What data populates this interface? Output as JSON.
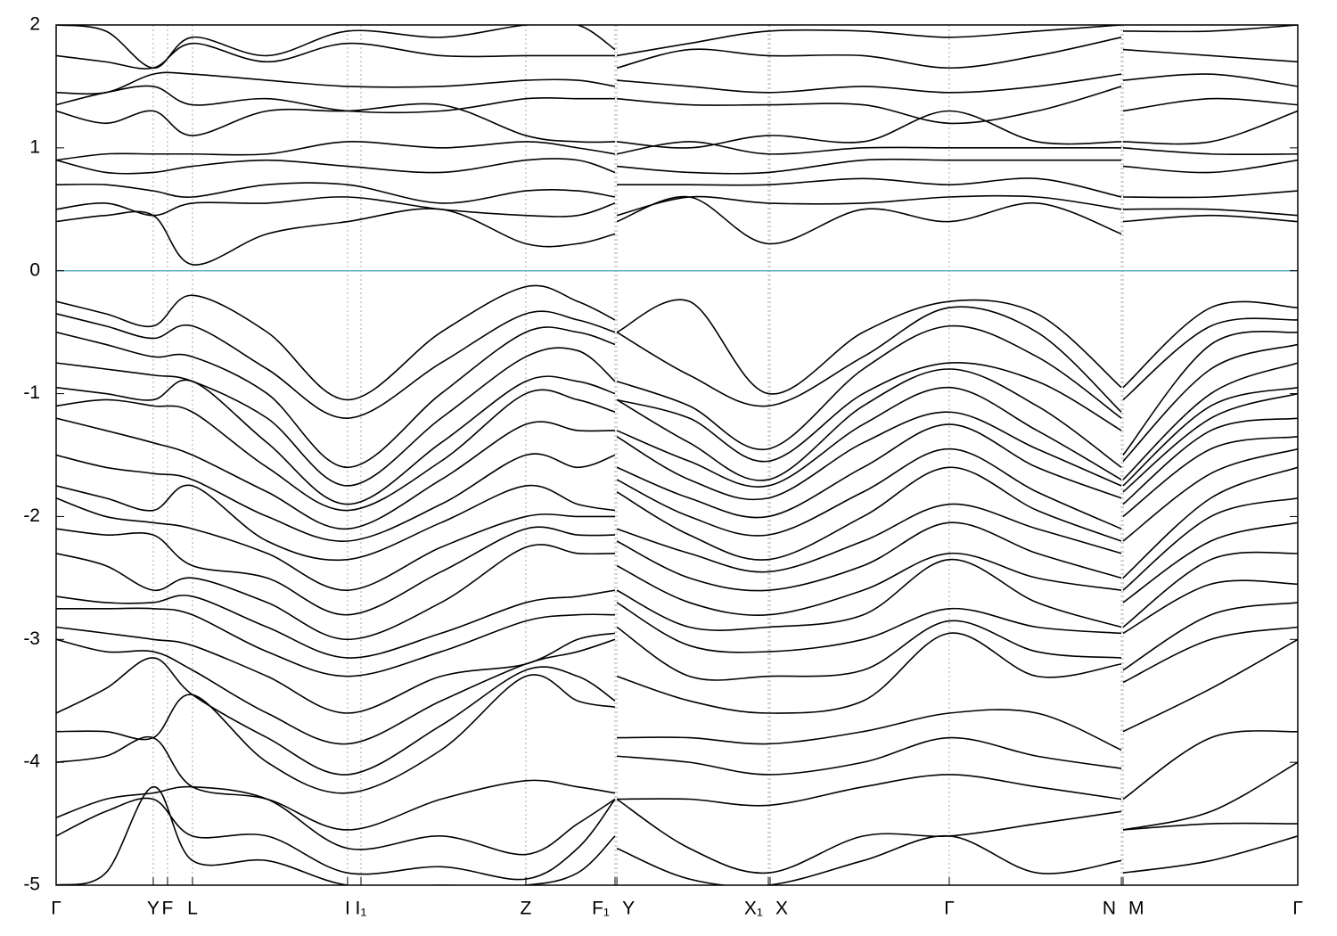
{
  "chart_data": {
    "type": "band-structure",
    "xlim": [
      0,
      1
    ],
    "xticks": [
      {
        "value": 0,
        "label": "Γ"
      },
      {
        "value": 0.0782,
        "label": "Y"
      },
      {
        "value": 0.0897,
        "label": "F"
      },
      {
        "value": 0.1098,
        "label": "L"
      },
      {
        "value": 0.2347,
        "label": "I"
      },
      {
        "value": 0.2455,
        "label": "I₁"
      },
      {
        "value": 0.3783,
        "label": "Z"
      },
      {
        "value": 0.4501,
        "label": "F₁"
      },
      {
        "value": 0.4516,
        "label": "Y"
      },
      {
        "value": 0.5736,
        "label": "X₁"
      },
      {
        "value": 0.575,
        "label": "X"
      },
      {
        "value": 0.7193,
        "label": "Γ"
      },
      {
        "value": 0.8579,
        "label": "N"
      },
      {
        "value": 0.8593,
        "label": "M"
      },
      {
        "value": 1,
        "label": "Γ"
      }
    ],
    "ylim": [
      -5,
      2
    ],
    "yticks": [
      2,
      1,
      0,
      -1,
      -2,
      -3,
      -4,
      -5
    ],
    "grid": true,
    "line_color": "#000000",
    "fermi_level": 0,
    "fermi_color": "#5fb1c6",
    "x": [
      0,
      0.04,
      0.0782,
      0.1098,
      0.17,
      0.2347,
      0.31,
      0.3783,
      0.42,
      0.4501,
      0.451,
      0.4516,
      0.51,
      0.5736,
      0.65,
      0.7193,
      0.79,
      0.8579,
      0.8586,
      0.8593,
      0.93,
      1.0
    ],
    "bands": [
      [
        0.4,
        0.45,
        0.45,
        0.05,
        0.3,
        0.4,
        0.5,
        0.22,
        0.22,
        0.3,
        null,
        0.4,
        0.6,
        0.22,
        0.5,
        0.4,
        0.55,
        0.3,
        null,
        0.4,
        0.45,
        0.4
      ],
      [
        0.5,
        0.55,
        0.45,
        0.55,
        0.55,
        0.6,
        0.5,
        0.45,
        0.45,
        0.55,
        null,
        0.45,
        0.6,
        0.55,
        0.55,
        0.6,
        0.6,
        0.5,
        null,
        0.5,
        0.5,
        0.45
      ],
      [
        0.7,
        0.7,
        0.65,
        0.6,
        0.7,
        0.7,
        0.55,
        0.65,
        0.65,
        0.6,
        null,
        0.7,
        0.7,
        0.7,
        0.75,
        0.7,
        0.75,
        0.6,
        null,
        0.6,
        0.6,
        0.65
      ],
      [
        0.9,
        0.8,
        0.8,
        0.85,
        0.9,
        0.85,
        0.8,
        0.9,
        0.9,
        0.8,
        null,
        0.85,
        0.8,
        0.8,
        0.9,
        0.9,
        0.9,
        0.9,
        null,
        0.85,
        0.8,
        0.9
      ],
      [
        0.9,
        0.95,
        0.95,
        0.95,
        0.95,
        1.05,
        1.0,
        1.05,
        1.0,
        0.95,
        null,
        0.95,
        1.05,
        0.95,
        1.0,
        1.0,
        1.0,
        1.0,
        null,
        1.0,
        0.95,
        0.95
      ],
      [
        1.3,
        1.2,
        1.3,
        1.1,
        1.3,
        1.3,
        1.35,
        1.1,
        1.05,
        1.05,
        null,
        1.05,
        1.0,
        1.1,
        1.05,
        1.3,
        1.05,
        1.05,
        null,
        1.05,
        1.05,
        1.3
      ],
      [
        1.35,
        1.45,
        1.5,
        1.35,
        1.4,
        1.3,
        1.3,
        1.4,
        1.4,
        1.4,
        null,
        1.4,
        1.35,
        1.35,
        1.35,
        1.2,
        1.3,
        1.5,
        null,
        1.3,
        1.4,
        1.35
      ],
      [
        1.45,
        1.45,
        1.6,
        1.6,
        1.55,
        1.5,
        1.5,
        1.55,
        1.55,
        1.5,
        null,
        1.55,
        1.5,
        1.45,
        1.5,
        1.45,
        1.5,
        1.6,
        null,
        1.55,
        1.6,
        1.5
      ],
      [
        1.75,
        1.7,
        1.65,
        1.85,
        1.7,
        1.85,
        1.75,
        1.75,
        1.75,
        1.75,
        null,
        1.65,
        1.8,
        1.75,
        1.75,
        1.65,
        1.75,
        1.9,
        null,
        1.8,
        1.75,
        1.7
      ],
      [
        2.0,
        1.95,
        1.65,
        1.9,
        1.75,
        1.95,
        1.9,
        2.0,
        2.0,
        1.8,
        null,
        1.75,
        1.85,
        1.95,
        1.95,
        1.9,
        1.95,
        2.0,
        null,
        1.95,
        1.95,
        2.0
      ],
      [
        -0.25,
        -0.35,
        -0.45,
        -0.2,
        -0.5,
        -1.05,
        -0.5,
        -0.13,
        -0.25,
        -0.4,
        null,
        -0.5,
        -0.25,
        -1.0,
        -0.5,
        -0.25,
        -0.35,
        -0.95,
        null,
        -0.95,
        -0.3,
        -0.3
      ],
      [
        -0.35,
        -0.45,
        -0.55,
        -0.45,
        -0.8,
        -1.2,
        -0.75,
        -0.35,
        -0.4,
        -0.5,
        null,
        -0.5,
        -0.85,
        -1.1,
        -0.7,
        -0.3,
        -0.5,
        -1.15,
        null,
        -1.05,
        -0.45,
        -0.4
      ],
      [
        -0.5,
        -0.6,
        -0.7,
        -0.7,
        -1.0,
        -1.6,
        -1.0,
        -0.5,
        -0.5,
        -0.6,
        null,
        -0.9,
        -1.1,
        -1.45,
        -0.8,
        -0.45,
        -0.7,
        -1.2,
        null,
        -1.5,
        -0.6,
        -0.5
      ],
      [
        -0.75,
        -0.8,
        -0.85,
        -0.9,
        -1.2,
        -1.75,
        -1.2,
        -0.7,
        -0.65,
        -0.9,
        null,
        -1.05,
        -1.2,
        -1.55,
        -1.0,
        -0.75,
        -0.9,
        -1.3,
        null,
        -1.55,
        -0.8,
        -0.6
      ],
      [
        -0.95,
        -1.0,
        -1.05,
        -0.9,
        -1.4,
        -1.9,
        -1.4,
        -0.9,
        -0.9,
        -1.0,
        null,
        -1.05,
        -1.4,
        -1.7,
        -1.1,
        -0.8,
        -1.1,
        -1.6,
        null,
        -1.7,
        -1.0,
        -0.75
      ],
      [
        -1.1,
        -1.05,
        -1.1,
        -1.15,
        -1.6,
        -1.95,
        -1.55,
        -1.0,
        -1.05,
        -1.15,
        null,
        -1.3,
        -1.55,
        -1.75,
        -1.25,
        -0.95,
        -1.3,
        -1.7,
        null,
        -1.75,
        -1.1,
        -0.95
      ],
      [
        -1.2,
        -1.3,
        -1.4,
        -1.5,
        -1.8,
        -2.1,
        -1.7,
        -1.25,
        -1.3,
        -1.3,
        null,
        -1.35,
        -1.7,
        -1.85,
        -1.4,
        -1.15,
        -1.45,
        -1.75,
        null,
        -1.8,
        -1.2,
        -1.0
      ],
      [
        -1.5,
        -1.6,
        -1.65,
        -1.7,
        -2.0,
        -2.2,
        -1.9,
        -1.5,
        -1.6,
        -1.5,
        null,
        -1.6,
        -1.85,
        -2.0,
        -1.6,
        -1.25,
        -1.6,
        -1.85,
        null,
        -1.9,
        -1.3,
        -1.2
      ],
      [
        -1.75,
        -1.85,
        -1.95,
        -1.75,
        -2.2,
        -2.35,
        -2.05,
        -1.75,
        -1.9,
        -1.95,
        null,
        -1.7,
        -2.0,
        -2.15,
        -1.8,
        -1.45,
        -1.8,
        -2.1,
        null,
        -2.0,
        -1.45,
        -1.35
      ],
      [
        -1.85,
        -2.0,
        -2.05,
        -2.1,
        -2.3,
        -2.6,
        -2.25,
        -2.0,
        -2.0,
        -2.0,
        null,
        -1.8,
        -2.15,
        -2.35,
        -2.0,
        -1.6,
        -1.95,
        -2.2,
        null,
        -2.2,
        -1.65,
        -1.45
      ],
      [
        -2.1,
        -2.15,
        -2.15,
        -2.4,
        -2.5,
        -2.8,
        -2.45,
        -2.1,
        -2.15,
        -2.15,
        null,
        -2.1,
        -2.3,
        -2.45,
        -2.2,
        -1.9,
        -2.1,
        -2.3,
        null,
        -2.5,
        -1.85,
        -1.6
      ],
      [
        -2.3,
        -2.4,
        -2.6,
        -2.5,
        -2.7,
        -3.0,
        -2.7,
        -2.25,
        -2.3,
        -2.3,
        null,
        -2.2,
        -2.5,
        -2.6,
        -2.4,
        -2.05,
        -2.3,
        -2.5,
        null,
        -2.6,
        -2.0,
        -1.85
      ],
      [
        -2.65,
        -2.7,
        -2.7,
        -2.65,
        -2.9,
        -3.15,
        -2.95,
        -2.7,
        -2.65,
        -2.6,
        null,
        -2.4,
        -2.7,
        -2.8,
        -2.6,
        -2.3,
        -2.5,
        -2.6,
        null,
        -2.7,
        -2.2,
        -2.05
      ],
      [
        -2.75,
        -2.75,
        -2.75,
        -2.8,
        -3.1,
        -3.3,
        -3.1,
        -2.85,
        -2.8,
        -2.8,
        null,
        -2.6,
        -2.9,
        -2.9,
        -2.8,
        -2.35,
        -2.7,
        -2.9,
        null,
        -2.9,
        -2.35,
        -2.3
      ],
      [
        -2.9,
        -2.95,
        -3.0,
        -3.05,
        -3.3,
        -3.6,
        -3.3,
        -3.2,
        -3.0,
        -2.95,
        null,
        -2.7,
        -3.05,
        -3.1,
        -3.0,
        -2.75,
        -2.9,
        -2.95,
        null,
        -2.95,
        -2.55,
        -2.55
      ],
      [
        -3.0,
        -3.1,
        -3.1,
        -3.25,
        -3.6,
        -3.85,
        -3.5,
        -3.2,
        -3.1,
        -3.0,
        null,
        -2.9,
        -3.3,
        -3.3,
        -3.25,
        -2.85,
        -3.1,
        -3.15,
        null,
        -3.25,
        -2.8,
        -2.7
      ],
      [
        -3.6,
        -3.4,
        -3.15,
        -3.45,
        -3.8,
        -4.1,
        -3.7,
        -3.25,
        -3.3,
        -3.5,
        null,
        -3.3,
        -3.5,
        -3.6,
        -3.5,
        -2.95,
        -3.3,
        -3.2,
        null,
        -3.35,
        -3.0,
        -2.9
      ],
      [
        -3.75,
        -3.75,
        -3.8,
        -3.45,
        -4.0,
        -4.25,
        -3.9,
        -3.3,
        -3.5,
        -3.55,
        null,
        -3.8,
        -3.8,
        -3.85,
        -3.75,
        -3.6,
        -3.6,
        -3.9,
        null,
        -3.75,
        -3.4,
        -3.0
      ],
      [
        -4.0,
        -3.95,
        -3.8,
        -4.2,
        -4.3,
        -4.55,
        -4.3,
        -4.15,
        -4.2,
        -4.25,
        null,
        -3.95,
        -4.0,
        -4.1,
        -4.0,
        -3.8,
        -3.95,
        -4.05,
        null,
        -4.3,
        -3.8,
        -3.75
      ],
      [
        -4.45,
        -4.3,
        -4.25,
        -4.2,
        -4.3,
        -4.7,
        -4.6,
        -4.75,
        -4.5,
        -4.3,
        null,
        -4.3,
        -4.3,
        -4.35,
        -4.2,
        -4.1,
        -4.2,
        -4.3,
        null,
        -4.55,
        -4.4,
        -4.0
      ],
      [
        -4.6,
        -4.4,
        -4.3,
        -4.6,
        -4.6,
        -4.9,
        -4.85,
        -4.95,
        -4.7,
        -4.3,
        null,
        -4.3,
        -4.7,
        -4.9,
        -4.6,
        -4.6,
        -4.5,
        -4.4,
        null,
        -4.55,
        -4.5,
        -4.5
      ],
      [
        -5.0,
        -4.9,
        -4.2,
        -4.8,
        -4.8,
        -5.0,
        -5.0,
        -5.0,
        -4.9,
        -4.6,
        null,
        -4.7,
        -4.95,
        -5.0,
        -4.8,
        -4.6,
        -4.9,
        -4.8,
        null,
        -4.9,
        -4.8,
        -4.6
      ]
    ]
  }
}
